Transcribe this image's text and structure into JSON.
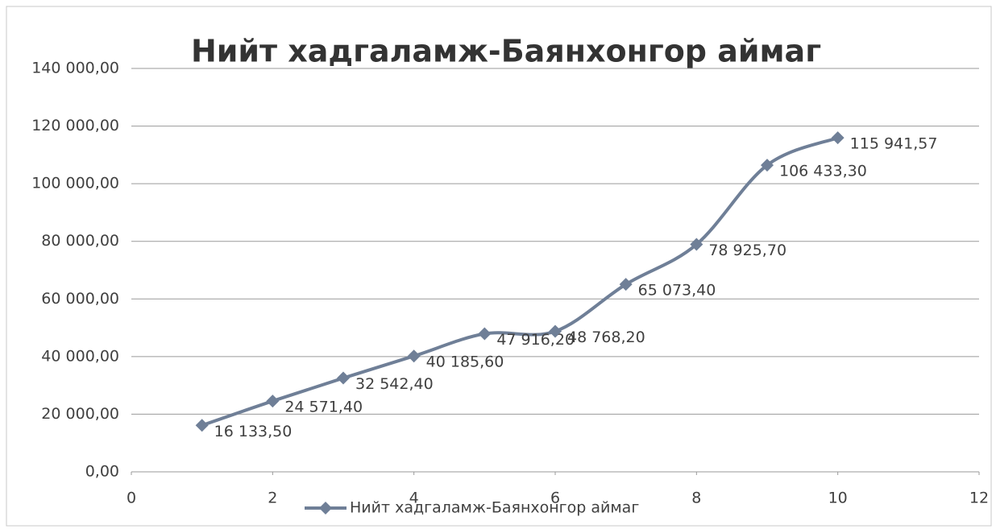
{
  "chart_data": {
    "type": "line",
    "title": "Нийт хадгаламж-Баянхонгор аймаг",
    "x": [
      1,
      2,
      3,
      4,
      5,
      6,
      7,
      8,
      9,
      10
    ],
    "series": [
      {
        "name": "Нийт хадгаламж-Баянхонгор аймаг",
        "color": "#6f7f97",
        "values": [
          16133.5,
          24571.4,
          32542.4,
          40185.6,
          47916.2,
          48768.2,
          65073.4,
          78925.7,
          106433.3,
          115941.57
        ],
        "value_labels": [
          "16 133,50",
          "24 571,40",
          "32 542,40",
          "40 185,60",
          "47 916,20",
          "48 768,20",
          "65 073,40",
          "78 925,70",
          "106 433,30",
          "115 941,57"
        ]
      }
    ],
    "xlim": [
      0,
      12
    ],
    "xticks": [
      0,
      2,
      4,
      6,
      8,
      10,
      12
    ],
    "ylim": [
      0,
      140000
    ],
    "yticks": [
      {
        "value": 0,
        "label": "0,00"
      },
      {
        "value": 20000,
        "label": "20 000,00"
      },
      {
        "value": 40000,
        "label": "40 000,00"
      },
      {
        "value": 60000,
        "label": "60 000,00"
      },
      {
        "value": 80000,
        "label": "80 000,00"
      },
      {
        "value": 100000,
        "label": "100 000,00"
      },
      {
        "value": 120000,
        "label": "120 000,00"
      },
      {
        "value": 140000,
        "label": "140 000,00"
      }
    ],
    "grid": true,
    "smooth": true,
    "legend": "bottom"
  }
}
